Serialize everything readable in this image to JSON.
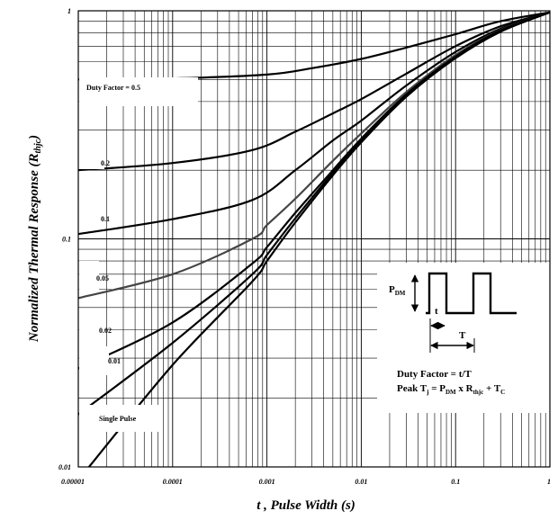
{
  "chart_data": {
    "type": "line",
    "title": "",
    "xlabel": "t , Pulse Width (s)",
    "ylabel_main": "Normalized Thermal Response (R",
    "ylabel_sub": "thjc",
    "ylabel_end": ")",
    "x_scale": "log",
    "y_scale": "log",
    "xlim": [
      1e-05,
      1
    ],
    "ylim": [
      0.01,
      1
    ],
    "grid": true,
    "x_ticks": [
      {
        "value": 1e-05,
        "label": "0.00001"
      },
      {
        "value": 0.0001,
        "label": "0.0001"
      },
      {
        "value": 0.001,
        "label": "0.001"
      },
      {
        "value": 0.01,
        "label": "0.01"
      },
      {
        "value": 0.1,
        "label": "0.1"
      },
      {
        "value": 1,
        "label": "1"
      }
    ],
    "y_ticks": [
      {
        "value": 0.01,
        "label": "0.01"
      },
      {
        "value": 0.1,
        "label": "0.1"
      },
      {
        "value": 1,
        "label": "1"
      }
    ],
    "series": [
      {
        "name": "Duty Factor = 0.5",
        "color": "#000000",
        "points": [
          [
            1e-05,
            0.5
          ],
          [
            0.0001,
            0.505
          ],
          [
            0.001,
            0.525
          ],
          [
            0.003,
            0.56
          ],
          [
            0.01,
            0.615
          ],
          [
            0.03,
            0.69
          ],
          [
            0.1,
            0.79
          ],
          [
            0.3,
            0.9
          ],
          [
            1,
            0.985
          ]
        ]
      },
      {
        "name": "0.2",
        "color": "#000000",
        "points": [
          [
            1e-05,
            0.2
          ],
          [
            0.0001,
            0.215
          ],
          [
            0.0007,
            0.245
          ],
          [
            0.002,
            0.295
          ],
          [
            0.005,
            0.355
          ],
          [
            0.01,
            0.41
          ],
          [
            0.03,
            0.53
          ],
          [
            0.1,
            0.7
          ],
          [
            0.3,
            0.855
          ],
          [
            1,
            0.985
          ]
        ]
      },
      {
        "name": "0.1",
        "color": "#000000",
        "points": [
          [
            1e-05,
            0.105
          ],
          [
            0.0001,
            0.122
          ],
          [
            0.0007,
            0.148
          ],
          [
            0.002,
            0.2
          ],
          [
            0.005,
            0.27
          ],
          [
            0.01,
            0.33
          ],
          [
            0.03,
            0.47
          ],
          [
            0.1,
            0.66
          ],
          [
            0.3,
            0.835
          ],
          [
            1,
            0.985
          ]
        ]
      },
      {
        "name": "0.05",
        "color": "#444444",
        "points": [
          [
            1e-05,
            0.055
          ],
          [
            0.0001,
            0.07
          ],
          [
            0.0007,
            0.1
          ],
          [
            0.001,
            0.115
          ],
          [
            0.002,
            0.15
          ],
          [
            0.005,
            0.22
          ],
          [
            0.01,
            0.29
          ],
          [
            0.03,
            0.44
          ],
          [
            0.1,
            0.64
          ],
          [
            0.3,
            0.825
          ],
          [
            1,
            0.985
          ]
        ]
      },
      {
        "name": "0.02",
        "color": "#000000",
        "points": [
          [
            1e-05,
            0.027
          ],
          [
            0.0001,
            0.043
          ],
          [
            0.0007,
            0.078
          ],
          [
            0.001,
            0.092
          ],
          [
            0.002,
            0.13
          ],
          [
            0.005,
            0.2
          ],
          [
            0.01,
            0.275
          ],
          [
            0.03,
            0.43
          ],
          [
            0.1,
            0.63
          ],
          [
            0.3,
            0.82
          ],
          [
            1,
            0.985
          ]
        ]
      },
      {
        "name": "0.01",
        "color": "#000000",
        "points": [
          [
            1e-05,
            0.017
          ],
          [
            0.0001,
            0.035
          ],
          [
            0.0007,
            0.07
          ],
          [
            0.001,
            0.085
          ],
          [
            0.002,
            0.123
          ],
          [
            0.005,
            0.195
          ],
          [
            0.01,
            0.27
          ],
          [
            0.03,
            0.425
          ],
          [
            0.1,
            0.625
          ],
          [
            0.3,
            0.815
          ],
          [
            1,
            0.985
          ]
        ]
      },
      {
        "name": "Single Pulse",
        "color": "#000000",
        "points": [
          [
            1.3e-05,
            0.01
          ],
          [
            0.0001,
            0.028
          ],
          [
            0.0007,
            0.065
          ],
          [
            0.001,
            0.08
          ],
          [
            0.002,
            0.118
          ],
          [
            0.005,
            0.19
          ],
          [
            0.01,
            0.265
          ],
          [
            0.03,
            0.42
          ],
          [
            0.1,
            0.62
          ],
          [
            0.3,
            0.81
          ],
          [
            1,
            0.985
          ]
        ]
      }
    ],
    "curve_labels": [
      {
        "text": "Duty Factor = 0.5"
      },
      {
        "text": "0.2"
      },
      {
        "text": "0.1"
      },
      {
        "text": "0.05"
      },
      {
        "text": "0.02"
      },
      {
        "text": "0.01"
      },
      {
        "text": "Single Pulse"
      }
    ],
    "inset": {
      "pdm_main": "P",
      "pdm_sub": "DM",
      "t_label": "t",
      "T_label": "T",
      "duty_line": "Duty Factor = t/T",
      "peak_pre": "Peak T",
      "peak_j": "j",
      "peak_mid": " = P",
      "peak_dm": "DM",
      "peak_x": " x R",
      "peak_thjc": "thjc",
      "peak_plus": " + T",
      "peak_c": "C"
    }
  }
}
